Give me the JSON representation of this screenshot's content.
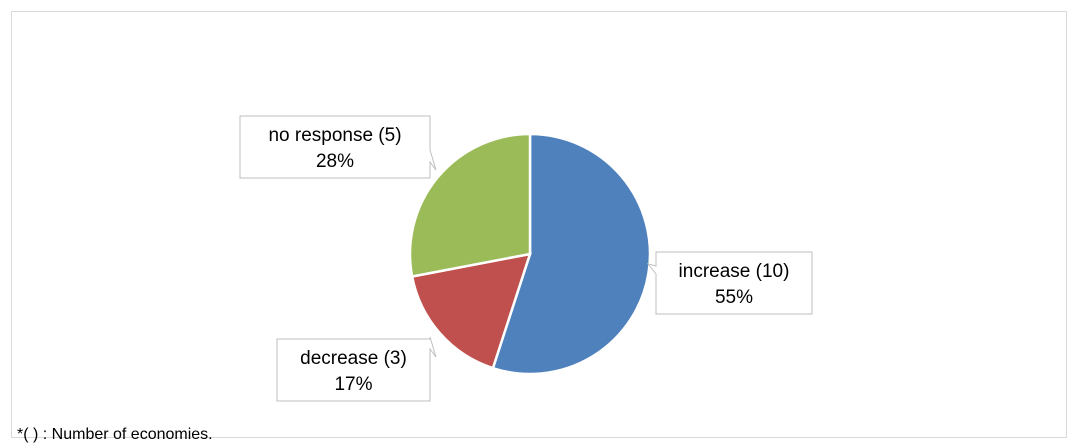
{
  "chart_data": {
    "type": "pie",
    "slices": [
      {
        "label": "increase (10)",
        "count": 10,
        "percent_label": "55%",
        "value": 55,
        "color": "#4F81BD"
      },
      {
        "label": "decrease (3)",
        "count": 3,
        "percent_label": "17%",
        "value": 17,
        "color": "#C0504D"
      },
      {
        "label": "no response (5)",
        "count": 5,
        "percent_label": "28%",
        "value": 28,
        "color": "#9BBB59"
      }
    ],
    "start_angle_deg": 0,
    "direction": "clockwise",
    "legend": "none",
    "footnote": "*( ) : Number of economies."
  }
}
